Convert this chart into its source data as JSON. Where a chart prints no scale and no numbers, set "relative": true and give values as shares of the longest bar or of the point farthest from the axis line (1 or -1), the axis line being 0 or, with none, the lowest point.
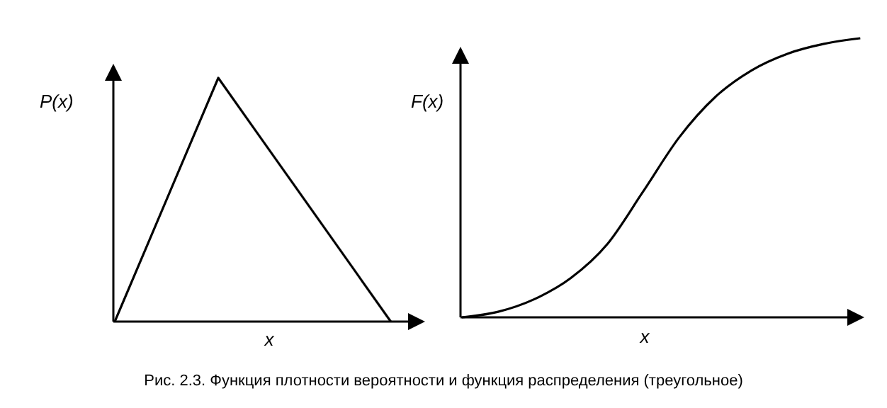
{
  "chart_data": [
    {
      "type": "line",
      "relative": true,
      "ylabel": "P(x)",
      "xlabel": "x",
      "categories": [
        null,
        null,
        null,
        null,
        null,
        null,
        null,
        null,
        null
      ],
      "series": [
        {
          "color": "#000000",
          "values": [
            0,
            0.333,
            0.667,
            1,
            0.8,
            0.6,
            0.4,
            0.2,
            0
          ]
        }
      ]
    },
    {
      "type": "line",
      "relative": true,
      "ylabel": "F(x)",
      "xlabel": "x",
      "categories": [
        null,
        null,
        null,
        null,
        null,
        null,
        null,
        null,
        null,
        null,
        null,
        null
      ],
      "series": [
        {
          "color": "#000000",
          "values": [
            0,
            0.02,
            0.065,
            0.14,
            0.26,
            0.45,
            0.645,
            0.79,
            0.885,
            0.945,
            0.98,
            1
          ]
        }
      ],
      "annotations": [
        "Рис. 2.3. Функция плотности вероятности и функция распределения (треугольное)"
      ]
    }
  ]
}
